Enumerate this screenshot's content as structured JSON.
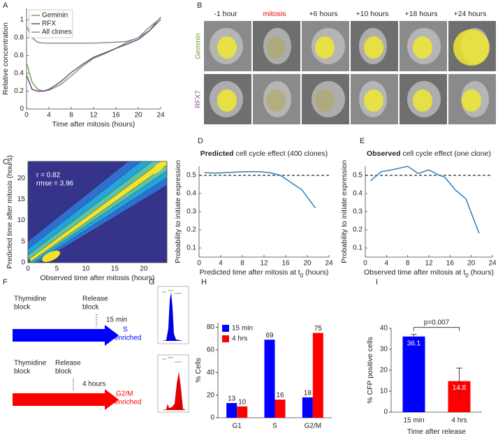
{
  "panel_letters": [
    "A",
    "B",
    "C",
    "D",
    "E",
    "F",
    "G",
    "H",
    "I"
  ],
  "chart_data": [
    {
      "type": "line",
      "x_label": "Time after mitosis (hours)",
      "y_label": "Relative concentration",
      "x": [
        0,
        1,
        2,
        3,
        4,
        6,
        8,
        10,
        12,
        14,
        16,
        18,
        20,
        22,
        24
      ],
      "series": [
        {
          "name": "Geminin",
          "color": "#6aa84f",
          "values": [
            0.52,
            0.3,
            0.22,
            0.2,
            0.21,
            0.27,
            0.37,
            0.48,
            0.57,
            0.62,
            0.68,
            0.75,
            0.8,
            0.88,
            1.0
          ]
        },
        {
          "name": "RFX",
          "color": "#7b3f94",
          "values": [
            0.38,
            0.22,
            0.2,
            0.2,
            0.22,
            0.3,
            0.41,
            0.5,
            0.58,
            0.63,
            0.68,
            0.73,
            0.78,
            0.88,
            1.03
          ]
        },
        {
          "name": "All clones",
          "color": "#8c8c8c",
          "values": [
            0.93,
            0.8,
            0.75,
            0.74,
            0.74,
            0.74,
            0.74,
            0.74,
            0.74,
            0.745,
            0.75,
            0.76,
            0.8,
            0.92,
            1.02
          ]
        }
      ],
      "xlim": [
        0,
        24
      ],
      "xticks": [
        0,
        4,
        8,
        12,
        16,
        20,
        24
      ],
      "ylim": [
        0,
        1.13
      ],
      "yticks": [
        0,
        0.2,
        0.4,
        0.6,
        0.8,
        1
      ],
      "legend": "top-left"
    },
    {
      "type": "contour",
      "x_label": "Observed time after mitosis (hours)",
      "y_label": "Predicted time after mitosis (hours)",
      "annotations": [
        "r = 0.82",
        "rmse = 3.96"
      ],
      "xlim": [
        0,
        24
      ],
      "xticks": [
        0,
        5,
        10,
        15,
        20
      ],
      "ylim": [
        0,
        24
      ],
      "yticks": [
        0,
        5,
        10,
        15,
        20
      ],
      "colors": [
        "#35338a",
        "#2f6fd0",
        "#22a5db",
        "#5fc2a0",
        "#f5e32a"
      ]
    },
    {
      "type": "line",
      "title_bold": "Predicted",
      "title": "cell cycle effect (400 clones)",
      "x_label": "Predicted time after mitosis at t",
      "x_label_sub": "0",
      "x_label_end": "(hours)",
      "y_label": "Probability to initiate expression",
      "x": [
        1,
        3,
        5,
        7,
        9,
        11,
        13,
        15,
        17,
        19,
        21.5
      ],
      "series": [
        {
          "color": "#2c7fb8",
          "values": [
            0.515,
            0.512,
            0.515,
            0.518,
            0.52,
            0.52,
            0.515,
            0.5,
            0.46,
            0.42,
            0.32
          ]
        }
      ],
      "reference_line": 0.5,
      "xlim": [
        0,
        24
      ],
      "xticks": [
        0,
        4,
        8,
        12,
        16,
        20,
        24
      ],
      "ylim": [
        0.05,
        0.55
      ],
      "yticks": [
        0.1,
        0.2,
        0.3,
        0.4,
        0.5
      ]
    },
    {
      "type": "line",
      "title_bold": "Observed",
      "title": "cell cycle effect (one clone)",
      "x_label": "Observed time after mitosis at t",
      "x_label_sub": "0",
      "x_label_end": "(hours)",
      "y_label": "Probability to initiate expression",
      "x": [
        1,
        3,
        5,
        8,
        10,
        12,
        14,
        15,
        17,
        19,
        21.5
      ],
      "series": [
        {
          "color": "#2c7fb8",
          "values": [
            0.47,
            0.52,
            0.53,
            0.55,
            0.51,
            0.53,
            0.5,
            0.49,
            0.42,
            0.37,
            0.18
          ]
        }
      ],
      "reference_line": 0.5,
      "xlim": [
        0,
        24
      ],
      "xticks": [
        0,
        4,
        8,
        12,
        16,
        20,
        24
      ],
      "ylim": [
        0.05,
        0.55
      ],
      "yticks": [
        0.1,
        0.2,
        0.3,
        0.4,
        0.5
      ]
    },
    {
      "type": "bar",
      "y_label": "% Cells",
      "categories": [
        "G1",
        "S",
        "G2/M"
      ],
      "series": [
        {
          "name": "15 min",
          "color": "#0000ff",
          "values": [
            13,
            69,
            18
          ]
        },
        {
          "name": "4 hrs",
          "color": "#ff0000",
          "values": [
            10,
            16,
            75
          ]
        }
      ],
      "ylim": [
        0,
        84
      ],
      "yticks": [
        0,
        20,
        40,
        60,
        80
      ],
      "legend": "top-left"
    },
    {
      "type": "errorbar",
      "y_label": "% CFP positive cells",
      "x_label": "Time after release",
      "categories": [
        "15 min",
        "4 hrs"
      ],
      "values": [
        36.1,
        14.8
      ],
      "errors": [
        1,
        6.2
      ],
      "colors": [
        "#0000ff",
        "#ff0000"
      ],
      "annotation": "p=0.007",
      "ylim": [
        0,
        40
      ],
      "yticks": [
        0,
        10,
        20,
        30,
        40
      ]
    }
  ],
  "panel_b": {
    "columns": [
      "-1 hour",
      "mitosis",
      "+6 hours",
      "+10 hours",
      "+18 hours",
      "+24 hours"
    ],
    "column_colors": [
      "#222",
      "#e00000",
      "#222",
      "#222",
      "#222",
      "#222"
    ],
    "rows": [
      {
        "label": "Geminin",
        "color": "#6a9a2a"
      },
      {
        "label": "RFX7",
        "color": "#8a4a9a"
      }
    ]
  },
  "panel_f": {
    "arrows": [
      {
        "start": [
          "Thymidine",
          "block"
        ],
        "release": [
          "Release",
          "block"
        ],
        "time": "15 min",
        "result": [
          "S",
          "enriched"
        ],
        "color": "#0000ff"
      },
      {
        "start": [
          "Thymidine",
          "block"
        ],
        "release": [
          "Release",
          "block"
        ],
        "time": "4 hours",
        "result": [
          "G2/M",
          "enriched"
        ],
        "color": "#ff0000"
      }
    ]
  }
}
